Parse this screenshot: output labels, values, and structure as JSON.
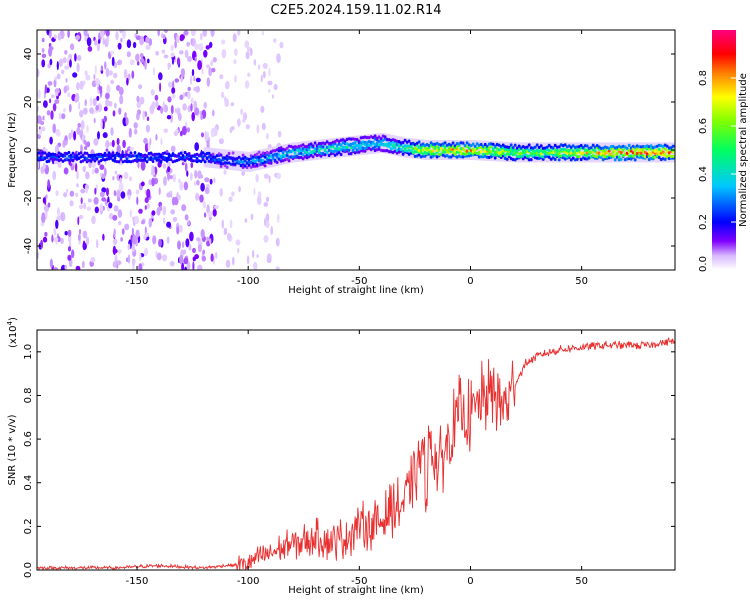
{
  "title": "C2E5.2024.159.11.02.R14",
  "chart_data": [
    {
      "type": "heatmap",
      "xlabel": "Height of straight line (km)",
      "ylabel": "Frequency (Hz)",
      "xlim": [
        -195,
        92
      ],
      "ylim": [
        -50,
        50
      ],
      "xticks": [
        -150,
        -100,
        -50,
        0,
        50
      ],
      "yticks": [
        -40,
        -20,
        0,
        20,
        40
      ],
      "ridge_x": [
        -195,
        -120,
        -100,
        -80,
        -60,
        -40,
        -30,
        -20,
        0,
        20,
        40,
        60,
        80,
        92
      ],
      "ridge_freq": [
        -3,
        -3,
        -5,
        -1,
        1,
        3,
        1,
        0,
        0,
        -1,
        -1,
        -1,
        -1,
        -1
      ],
      "ridge_amplitude": [
        0.25,
        0.25,
        0.3,
        0.4,
        0.45,
        0.4,
        0.5,
        0.75,
        0.8,
        0.6,
        0.65,
        0.8,
        0.85,
        0.8
      ],
      "noise_region_x": [
        -195,
        -95
      ],
      "colorbar": {
        "label": "Normalized spectral amplitude",
        "range": [
          0.0,
          1.0
        ],
        "ticks": [
          "0.0",
          "0.2",
          "0.4",
          "0.6",
          "0.8"
        ],
        "colors": [
          "#ffffff",
          "#8000ff",
          "#0000ff",
          "#00ffff",
          "#00ff00",
          "#ffff00",
          "#ff8000",
          "#ff0000",
          "#ff0080"
        ]
      }
    },
    {
      "type": "line",
      "xlabel": "Height of straight line (km)",
      "ylabel": "SNR (10 * v/v)",
      "yscale_label": "(x10",
      "yscale_exp": "4",
      "xlim": [
        -195,
        92
      ],
      "ylim": [
        0.0,
        1.1
      ],
      "xticks": [
        -150,
        -100,
        -50,
        0,
        50
      ],
      "yticks": [
        "0.0",
        "0.2",
        "0.4",
        "0.6",
        "0.8",
        "1.0"
      ],
      "series": [
        {
          "color": "#e83030",
          "x": [
            -195,
            -180,
            -160,
            -140,
            -120,
            -110,
            -100,
            -90,
            -80,
            -70,
            -60,
            -50,
            -40,
            -35,
            -30,
            -25,
            -22,
            -20,
            -18,
            -15,
            -10,
            -5,
            0,
            5,
            10,
            15,
            20,
            25,
            30,
            40,
            50,
            60,
            70,
            80,
            85,
            90,
            92
          ],
          "y": [
            0.01,
            0.01,
            0.01,
            0.02,
            0.01,
            0.02,
            0.03,
            0.08,
            0.12,
            0.15,
            0.13,
            0.2,
            0.22,
            0.28,
            0.3,
            0.45,
            0.55,
            0.4,
            0.6,
            0.45,
            0.6,
            0.72,
            0.7,
            0.78,
            0.82,
            0.75,
            0.85,
            0.95,
            0.98,
            1.01,
            1.02,
            1.03,
            1.03,
            1.03,
            1.04,
            1.05,
            1.04
          ]
        }
      ]
    }
  ]
}
